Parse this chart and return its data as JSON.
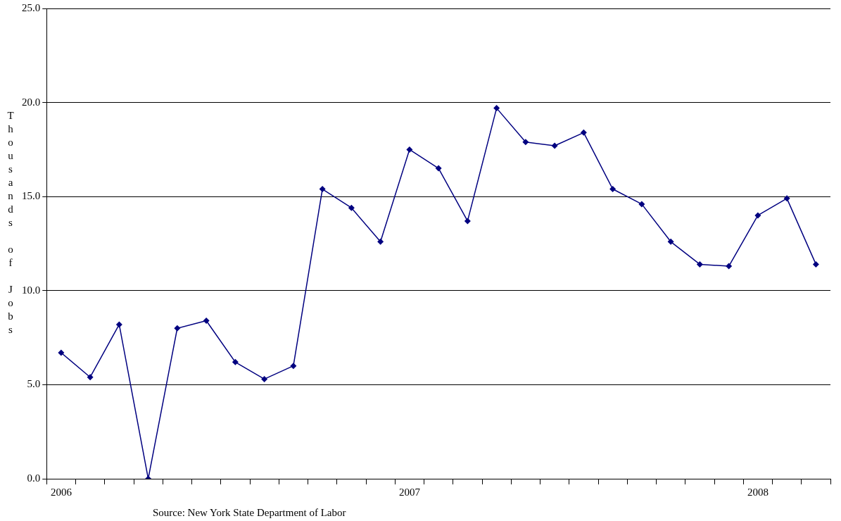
{
  "chart_data": {
    "type": "line",
    "ylabel": "Thousands of Jobs",
    "annotations": [
      "Source: New York State Department of Labor"
    ],
    "categories": [
      "2006",
      null,
      null,
      null,
      null,
      null,
      null,
      null,
      null,
      null,
      null,
      null,
      "2007",
      null,
      null,
      null,
      null,
      null,
      null,
      null,
      null,
      null,
      null,
      null,
      "2008",
      null,
      null
    ],
    "series": [
      {
        "color": "#000080",
        "values": [
          6.7,
          5.4,
          8.2,
          0.0,
          8.0,
          8.4,
          6.2,
          5.3,
          6.0,
          15.4,
          14.4,
          12.6,
          17.5,
          16.5,
          13.7,
          19.7,
          17.9,
          17.7,
          18.4,
          15.4,
          14.6,
          12.6,
          11.4,
          11.3,
          14.0,
          14.9,
          11.4
        ]
      }
    ],
    "ylim": [
      0,
      25
    ],
    "yticks": [
      {
        "value": 0,
        "label": "0.0"
      },
      {
        "value": 5,
        "label": "5.0"
      },
      {
        "value": 10,
        "label": "10.0"
      },
      {
        "value": 15,
        "label": "15.0"
      },
      {
        "value": 20,
        "label": "20.0"
      },
      {
        "value": 25,
        "label": "25.0"
      }
    ],
    "grid": "y",
    "legend": false,
    "marker": "diamond",
    "line_style": "solid"
  }
}
